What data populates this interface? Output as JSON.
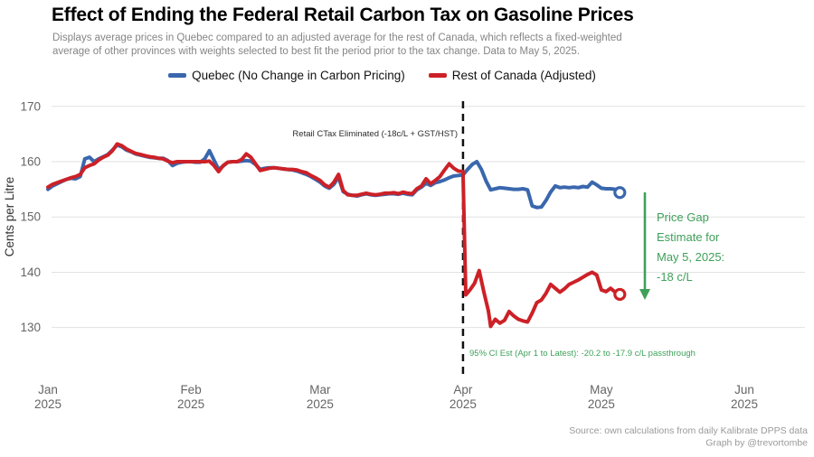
{
  "chart_data": {
    "type": "line",
    "title": "Effect of Ending the Federal Retail Carbon Tax on Gasoline Prices",
    "subtitle_lines": [
      "Displays average prices in Quebec compared to an adjusted average for the rest of Canada, which reflects a fixed-weighted",
      "average of other provinces with weights selected to best fit the period prior to the tax change. Data to May 5, 2025."
    ],
    "ylabel": "Cents per Litre",
    "ylim": [
      125,
      172
    ],
    "yticks": [
      130,
      140,
      150,
      160,
      170
    ],
    "grid": "horizontal-only",
    "legend_position": "top",
    "x_axis": {
      "unit": "days since Jan 1, 2025",
      "months": [
        {
          "label": "Jan",
          "year": "2025",
          "day": 0
        },
        {
          "label": "Feb",
          "year": "2025",
          "day": 31
        },
        {
          "label": "Mar",
          "year": "2025",
          "day": 59
        },
        {
          "label": "Apr",
          "year": "2025",
          "day": 90
        },
        {
          "label": "May",
          "year": "2025",
          "day": 120
        },
        {
          "label": "Jun",
          "year": "2025",
          "day": 151
        }
      ]
    },
    "annotations": {
      "event_line_day": 90,
      "event_label": "Retail CTax Eliminated (-18c/L + GST/HST)",
      "annotation_color": "#3fa05a",
      "gap_lines": [
        "Price Gap",
        "Estimate for",
        "May 5, 2025:",
        "-18 c/L"
      ],
      "ci_note": "95% CI Est (Apr 1 to Latest):  -20.2 to -17.9 c/L passthrough"
    },
    "series": [
      {
        "name": "Quebec (No Change in Carbon Pricing)",
        "color": "#3a67ad",
        "points": [
          [
            0,
            155.0
          ],
          [
            1,
            155.6
          ],
          [
            2,
            156.0
          ],
          [
            3,
            156.4
          ],
          [
            4,
            156.8
          ],
          [
            5,
            157.0
          ],
          [
            6,
            156.9
          ],
          [
            7,
            157.3
          ],
          [
            8,
            160.5
          ],
          [
            9,
            160.8
          ],
          [
            10,
            160.0
          ],
          [
            11,
            160.5
          ],
          [
            12,
            160.9
          ],
          [
            13,
            161.3
          ],
          [
            14,
            162.1
          ],
          [
            15,
            163.0
          ],
          [
            16,
            162.7
          ],
          [
            17,
            162.1
          ],
          [
            18,
            161.8
          ],
          [
            19,
            161.4
          ],
          [
            20,
            161.2
          ],
          [
            21,
            161.0
          ],
          [
            22,
            160.8
          ],
          [
            23,
            160.7
          ],
          [
            24,
            160.6
          ],
          [
            25,
            160.6
          ],
          [
            26,
            160.2
          ],
          [
            27,
            159.3
          ],
          [
            28,
            159.7
          ],
          [
            29,
            159.9
          ],
          [
            30,
            160.0
          ],
          [
            31,
            160.0
          ],
          [
            32,
            159.9
          ],
          [
            33,
            159.9
          ],
          [
            34,
            160.5
          ],
          [
            35,
            162.0
          ],
          [
            36,
            160.3
          ],
          [
            37,
            158.6
          ],
          [
            38,
            159.2
          ],
          [
            39,
            159.9
          ],
          [
            40,
            160.0
          ],
          [
            41,
            160.0
          ],
          [
            42,
            160.1
          ],
          [
            43,
            160.2
          ],
          [
            44,
            160.1
          ],
          [
            45,
            159.5
          ],
          [
            46,
            158.6
          ],
          [
            47,
            158.8
          ],
          [
            48,
            158.9
          ],
          [
            49,
            158.9
          ],
          [
            50,
            158.8
          ],
          [
            51,
            158.7
          ],
          [
            52,
            158.6
          ],
          [
            53,
            158.5
          ],
          [
            54,
            158.3
          ],
          [
            55,
            158.0
          ],
          [
            56,
            157.7
          ],
          [
            57,
            157.3
          ],
          [
            58,
            156.8
          ],
          [
            59,
            156.3
          ],
          [
            60,
            155.6
          ],
          [
            61,
            155.2
          ],
          [
            62,
            155.9
          ],
          [
            63,
            157.2
          ],
          [
            64,
            154.6
          ],
          [
            65,
            154.1
          ],
          [
            66,
            153.9
          ],
          [
            67,
            153.8
          ],
          [
            68,
            154.0
          ],
          [
            69,
            154.2
          ],
          [
            70,
            154.0
          ],
          [
            71,
            153.9
          ],
          [
            72,
            154.0
          ],
          [
            73,
            154.1
          ],
          [
            74,
            154.2
          ],
          [
            75,
            154.2
          ],
          [
            76,
            154.1
          ],
          [
            77,
            154.3
          ],
          [
            78,
            154.1
          ],
          [
            79,
            154.0
          ],
          [
            80,
            154.9
          ],
          [
            81,
            155.4
          ],
          [
            82,
            156.1
          ],
          [
            83,
            155.7
          ],
          [
            84,
            156.2
          ],
          [
            85,
            156.4
          ],
          [
            86,
            156.7
          ],
          [
            87,
            157.1
          ],
          [
            88,
            157.4
          ],
          [
            89,
            157.5
          ],
          [
            90,
            157.6
          ],
          [
            91,
            158.6
          ],
          [
            92,
            159.5
          ],
          [
            93,
            160.0
          ],
          [
            94,
            158.6
          ],
          [
            95,
            156.5
          ],
          [
            96,
            154.9
          ],
          [
            97,
            155.1
          ],
          [
            98,
            155.3
          ],
          [
            99,
            155.2
          ],
          [
            100,
            155.1
          ],
          [
            101,
            155.0
          ],
          [
            102,
            155.0
          ],
          [
            103,
            155.1
          ],
          [
            104,
            154.9
          ],
          [
            105,
            152.0
          ],
          [
            106,
            151.7
          ],
          [
            107,
            151.8
          ],
          [
            108,
            153.0
          ],
          [
            109,
            154.5
          ],
          [
            110,
            155.6
          ],
          [
            111,
            155.3
          ],
          [
            112,
            155.4
          ],
          [
            113,
            155.3
          ],
          [
            114,
            155.4
          ],
          [
            115,
            155.3
          ],
          [
            116,
            155.5
          ],
          [
            117,
            155.4
          ],
          [
            118,
            156.3
          ],
          [
            119,
            155.8
          ],
          [
            120,
            155.2
          ],
          [
            121,
            155.1
          ],
          [
            122,
            155.1
          ],
          [
            123,
            155.0
          ],
          [
            124,
            154.4
          ]
        ]
      },
      {
        "name": "Rest of Canada (Adjusted)",
        "color": "#cc2127",
        "points": [
          [
            0,
            155.4
          ],
          [
            1,
            155.9
          ],
          [
            2,
            156.2
          ],
          [
            3,
            156.5
          ],
          [
            4,
            156.8
          ],
          [
            5,
            157.1
          ],
          [
            6,
            157.3
          ],
          [
            7,
            157.7
          ],
          [
            8,
            158.9
          ],
          [
            9,
            159.3
          ],
          [
            10,
            159.6
          ],
          [
            11,
            160.3
          ],
          [
            12,
            160.8
          ],
          [
            13,
            161.2
          ],
          [
            14,
            162.0
          ],
          [
            15,
            163.2
          ],
          [
            16,
            162.9
          ],
          [
            17,
            162.3
          ],
          [
            18,
            161.9
          ],
          [
            19,
            161.5
          ],
          [
            20,
            161.3
          ],
          [
            21,
            161.1
          ],
          [
            22,
            160.9
          ],
          [
            23,
            160.8
          ],
          [
            24,
            160.6
          ],
          [
            25,
            160.5
          ],
          [
            26,
            160.1
          ],
          [
            27,
            159.8
          ],
          [
            28,
            160.0
          ],
          [
            29,
            160.0
          ],
          [
            30,
            160.0
          ],
          [
            31,
            160.0
          ],
          [
            32,
            160.0
          ],
          [
            33,
            160.0
          ],
          [
            34,
            160.0
          ],
          [
            35,
            160.1
          ],
          [
            36,
            159.3
          ],
          [
            37,
            158.2
          ],
          [
            38,
            159.3
          ],
          [
            39,
            159.9
          ],
          [
            40,
            160.0
          ],
          [
            41,
            160.0
          ],
          [
            42,
            160.4
          ],
          [
            43,
            161.4
          ],
          [
            44,
            160.8
          ],
          [
            45,
            159.6
          ],
          [
            46,
            158.4
          ],
          [
            47,
            158.6
          ],
          [
            48,
            158.8
          ],
          [
            49,
            158.9
          ],
          [
            50,
            158.8
          ],
          [
            51,
            158.7
          ],
          [
            52,
            158.6
          ],
          [
            53,
            158.6
          ],
          [
            54,
            158.5
          ],
          [
            55,
            158.2
          ],
          [
            56,
            158.0
          ],
          [
            57,
            157.5
          ],
          [
            58,
            157.1
          ],
          [
            59,
            156.6
          ],
          [
            60,
            155.8
          ],
          [
            61,
            155.4
          ],
          [
            62,
            156.3
          ],
          [
            63,
            157.7
          ],
          [
            64,
            154.8
          ],
          [
            65,
            154.0
          ],
          [
            66,
            153.9
          ],
          [
            67,
            153.9
          ],
          [
            68,
            154.1
          ],
          [
            69,
            154.3
          ],
          [
            70,
            154.1
          ],
          [
            71,
            154.0
          ],
          [
            72,
            154.1
          ],
          [
            73,
            154.3
          ],
          [
            74,
            154.3
          ],
          [
            75,
            154.4
          ],
          [
            76,
            154.2
          ],
          [
            77,
            154.5
          ],
          [
            78,
            154.3
          ],
          [
            79,
            154.2
          ],
          [
            80,
            155.1
          ],
          [
            81,
            155.6
          ],
          [
            82,
            156.9
          ],
          [
            83,
            156.0
          ],
          [
            84,
            156.6
          ],
          [
            85,
            157.3
          ],
          [
            86,
            158.5
          ],
          [
            87,
            159.6
          ],
          [
            88,
            158.8
          ],
          [
            89,
            158.3
          ],
          [
            90,
            158.2
          ],
          [
            90.6,
            135.9
          ],
          [
            91.5,
            136.8
          ],
          [
            92.5,
            138.0
          ],
          [
            93.5,
            140.3
          ],
          [
            94.5,
            136.5
          ],
          [
            95.5,
            133.0
          ],
          [
            96,
            130.2
          ],
          [
            97,
            131.5
          ],
          [
            98,
            130.8
          ],
          [
            99,
            131.3
          ],
          [
            100,
            132.9
          ],
          [
            101,
            132.1
          ],
          [
            102,
            131.5
          ],
          [
            103,
            131.2
          ],
          [
            104,
            131.0
          ],
          [
            105,
            132.6
          ],
          [
            106,
            134.5
          ],
          [
            107,
            135.0
          ],
          [
            108,
            136.2
          ],
          [
            109,
            137.8
          ],
          [
            110,
            137.1
          ],
          [
            111,
            136.4
          ],
          [
            112,
            137.0
          ],
          [
            113,
            137.8
          ],
          [
            114,
            138.2
          ],
          [
            115,
            138.6
          ],
          [
            116,
            139.1
          ],
          [
            117,
            139.6
          ],
          [
            118,
            140.0
          ],
          [
            119,
            139.5
          ],
          [
            120,
            136.8
          ],
          [
            121,
            136.5
          ],
          [
            122,
            137.1
          ],
          [
            123,
            136.4
          ],
          [
            124,
            136.0
          ]
        ]
      }
    ]
  },
  "footer": {
    "source": "Source: own calculations from daily Kalibrate DPPS data",
    "credit": "Graph by @trevortombe"
  }
}
